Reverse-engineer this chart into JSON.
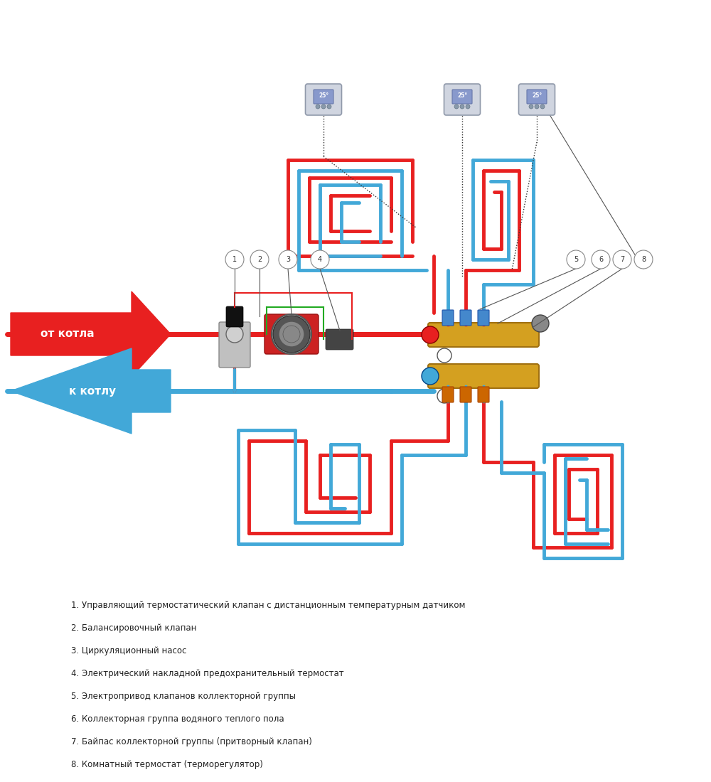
{
  "bg_color": "#ffffff",
  "fig_width": 10.0,
  "fig_height": 11.0,
  "legend_items": [
    "1. Управляющий термостатический клапан с дистанционным температурным датчиком",
    "2. Балансировочный клапан",
    "3. Циркуляционный насос",
    "4. Электрический накладной предохранительный термостат",
    "5. Электропривод клапанов коллекторной группы",
    "6. Коллекторная группа водяного теплого пола",
    "7. Байпас коллекторной группы (притворный клапан)",
    "8. Комнатный термостат (терморегулятор)"
  ],
  "red_color": "#e82020",
  "blue_color": "#42a8d8",
  "gold_color": "#d4a020",
  "green_color": "#22aa22",
  "dark_color": "#333333",
  "gray_color": "#aaaaaa",
  "pipe_lw": 5,
  "arrow_from_kotla_label": "от котла",
  "arrow_to_kotla_label": "к котлу"
}
